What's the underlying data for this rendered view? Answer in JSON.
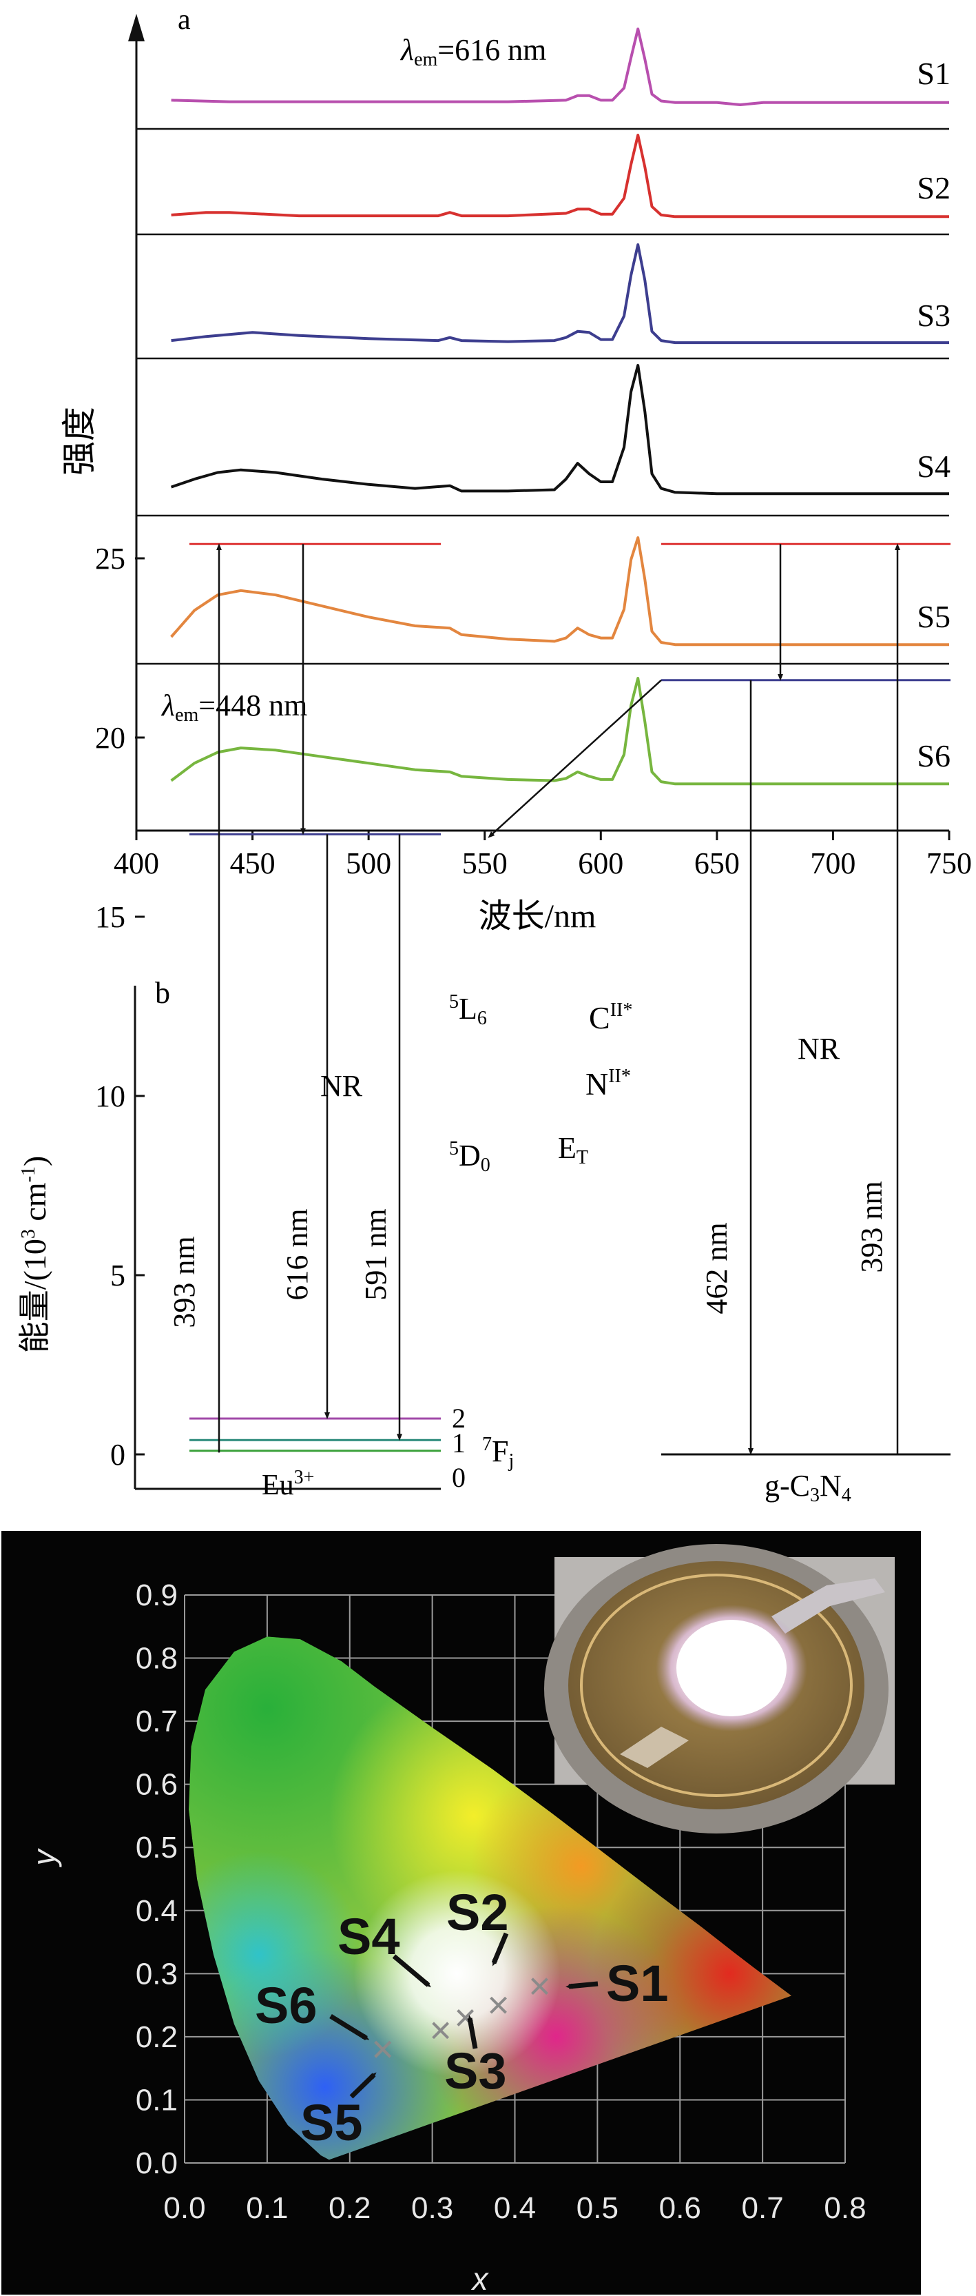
{
  "panel_a": {
    "label": "a",
    "ylabel": "强度",
    "xlabel": "波长/nm",
    "annot_top": {
      "lam": "λ",
      "sub": "em",
      "rest": "=616 nm"
    },
    "annot_bottom": {
      "lam": "λ",
      "sub": "em",
      "rest": "=448 nm"
    }
  },
  "panel_b": {
    "label": "b",
    "ylabel_pre": "能量/(10",
    "ylabel_sup": "3",
    "ylabel_mid": " cm",
    "ylabel_sup2": "-1",
    "ylabel_post": ")",
    "eu_levels": {
      "L6": "5",
      "L6b": "L",
      "L6c": "6",
      "D0": "5",
      "D0b": "D",
      "D0c": "0",
      "F": "7",
      "Fb": "F",
      "Fc": "j"
    },
    "fj_labels": [
      "2",
      "1",
      "0"
    ],
    "eu_label": {
      "base": "Eu",
      "sup": "3+"
    },
    "gcn_label": {
      "pre": "g-C",
      "s1": "3",
      "mid": "N",
      "s2": "4"
    },
    "c_level": {
      "base": "C",
      "sup": "II*"
    },
    "n_level": {
      "base": "N",
      "sup": "II*"
    },
    "nr_left": "NR",
    "nr_right": "NR",
    "et": {
      "base": "E",
      "sub": "T"
    },
    "t393_left": "393 nm",
    "t616": "616 nm",
    "t591": "591 nm",
    "t462": "462 nm",
    "t393_right": "393 nm"
  },
  "panel_c": {
    "xlabel": "x",
    "ylabel": "y",
    "labels": [
      "S1",
      "S2",
      "S3",
      "S4",
      "S5",
      "S6"
    ]
  },
  "chart_data": [
    {
      "type": "line",
      "panel": "a",
      "xlabel": "波长/nm",
      "ylabel": "强度",
      "xlim": [
        400,
        750
      ],
      "xticks": [
        400,
        450,
        500,
        550,
        600,
        650,
        700,
        750
      ],
      "series": [
        {
          "name": "S1",
          "color": "#b84fae",
          "x": [
            415,
            440,
            470,
            500,
            530,
            560,
            585,
            590,
            595,
            600,
            605,
            610,
            613,
            616,
            619,
            622,
            626,
            632,
            650,
            660,
            670,
            680,
            700,
            720,
            750
          ],
          "y": [
            0.06,
            0.04,
            0.04,
            0.04,
            0.04,
            0.04,
            0.06,
            0.12,
            0.12,
            0.06,
            0.06,
            0.22,
            0.62,
            1.0,
            0.6,
            0.14,
            0.05,
            0.03,
            0.03,
            0.0,
            0.03,
            0.03,
            0.03,
            0.03,
            0.03
          ]
        },
        {
          "name": "S2",
          "color": "#d7312f",
          "x": [
            415,
            430,
            440,
            470,
            500,
            530,
            535,
            540,
            560,
            585,
            590,
            595,
            600,
            605,
            610,
            613,
            616,
            619,
            622,
            626,
            632,
            650,
            700,
            720,
            750
          ],
          "y": [
            0.05,
            0.08,
            0.08,
            0.04,
            0.04,
            0.04,
            0.08,
            0.04,
            0.04,
            0.07,
            0.12,
            0.12,
            0.06,
            0.06,
            0.25,
            0.65,
            1.0,
            0.62,
            0.15,
            0.05,
            0.03,
            0.03,
            0.03,
            0.03,
            0.03
          ]
        },
        {
          "name": "S3",
          "color": "#3d3e8f",
          "x": [
            415,
            430,
            450,
            470,
            500,
            530,
            535,
            540,
            560,
            580,
            585,
            590,
            595,
            600,
            605,
            610,
            613,
            616,
            619,
            622,
            626,
            632,
            650,
            700,
            750
          ],
          "y": [
            0.06,
            0.1,
            0.14,
            0.11,
            0.08,
            0.06,
            0.09,
            0.06,
            0.05,
            0.06,
            0.09,
            0.15,
            0.14,
            0.07,
            0.07,
            0.3,
            0.7,
            1.0,
            0.65,
            0.15,
            0.06,
            0.04,
            0.04,
            0.04,
            0.04
          ]
        },
        {
          "name": "S4",
          "color": "#111111",
          "x": [
            415,
            425,
            435,
            445,
            460,
            480,
            500,
            520,
            535,
            540,
            560,
            580,
            585,
            590,
            595,
            600,
            605,
            610,
            613,
            616,
            619,
            622,
            626,
            632,
            650,
            700,
            750
          ],
          "y": [
            0.08,
            0.14,
            0.19,
            0.21,
            0.19,
            0.14,
            0.1,
            0.07,
            0.09,
            0.05,
            0.05,
            0.06,
            0.14,
            0.26,
            0.18,
            0.12,
            0.12,
            0.38,
            0.8,
            1.0,
            0.65,
            0.18,
            0.07,
            0.04,
            0.03,
            0.03,
            0.03
          ]
        },
        {
          "name": "S5",
          "color": "#e3863f",
          "x": [
            415,
            425,
            435,
            445,
            460,
            480,
            500,
            520,
            535,
            540,
            560,
            580,
            585,
            590,
            595,
            600,
            605,
            610,
            613,
            616,
            619,
            622,
            626,
            632,
            650,
            700,
            750
          ],
          "y": [
            0.1,
            0.34,
            0.48,
            0.52,
            0.48,
            0.38,
            0.28,
            0.2,
            0.18,
            0.12,
            0.08,
            0.06,
            0.09,
            0.18,
            0.12,
            0.09,
            0.09,
            0.35,
            0.8,
            1.0,
            0.62,
            0.15,
            0.05,
            0.03,
            0.03,
            0.03,
            0.03
          ]
        },
        {
          "name": "S6",
          "color": "#77b63f",
          "x": [
            415,
            425,
            435,
            445,
            460,
            480,
            500,
            520,
            535,
            540,
            560,
            580,
            585,
            590,
            595,
            600,
            605,
            610,
            613,
            616,
            619,
            622,
            626,
            632,
            650,
            700,
            750
          ],
          "y": [
            0.06,
            0.22,
            0.32,
            0.36,
            0.34,
            0.28,
            0.22,
            0.16,
            0.14,
            0.1,
            0.07,
            0.06,
            0.08,
            0.14,
            0.1,
            0.07,
            0.07,
            0.3,
            0.75,
            1.0,
            0.6,
            0.14,
            0.05,
            0.03,
            0.03,
            0.03,
            0.03
          ]
        }
      ]
    },
    {
      "type": "diagram",
      "panel": "b",
      "ylabel": "能量/(10³ cm⁻¹)",
      "ylim": [
        0,
        26
      ],
      "yticks": [
        0,
        5,
        10,
        15,
        20,
        25
      ],
      "eu_levels": [
        {
          "level": "5L6",
          "energy": 25.4
        },
        {
          "level": "5D0",
          "energy": 17.3
        },
        {
          "level": "7F2",
          "energy": 1.0
        },
        {
          "level": "7F1",
          "energy": 0.4
        },
        {
          "level": "7F0",
          "energy": 0.1
        }
      ],
      "gcn_levels": [
        {
          "level": "CII*",
          "energy": 25.4
        },
        {
          "level": "NII*",
          "energy": 21.6
        },
        {
          "level": "ground",
          "energy": 0
        }
      ],
      "transitions": [
        {
          "label": "393 nm",
          "from": 0,
          "to": 25.4
        },
        {
          "label": "NR",
          "from": 25.4,
          "to": 17.3
        },
        {
          "label": "616 nm",
          "from": 17.3,
          "to": 1.0
        },
        {
          "label": "591 nm",
          "from": 17.3,
          "to": 0.4
        },
        {
          "label": "ET",
          "from": 21.6,
          "to": 17.3
        },
        {
          "label": "NR",
          "from": 25.4,
          "to": 21.6
        },
        {
          "label": "462 nm",
          "from": 21.6,
          "to": 0
        },
        {
          "label": "393 nm",
          "from": 0,
          "to": 25.4
        }
      ]
    },
    {
      "type": "scatter",
      "panel": "c",
      "xlabel": "x",
      "ylabel": "y",
      "xlim": [
        0.0,
        0.8
      ],
      "ylim": [
        0.0,
        0.9
      ],
      "xticks": [
        0.0,
        0.1,
        0.2,
        0.3,
        0.4,
        0.5,
        0.6,
        0.7,
        0.8
      ],
      "yticks": [
        0.0,
        0.1,
        0.2,
        0.3,
        0.4,
        0.5,
        0.6,
        0.7,
        0.8,
        0.9
      ],
      "points": [
        {
          "name": "S1",
          "x": 0.43,
          "y": 0.28
        },
        {
          "name": "S2",
          "x": 0.38,
          "y": 0.25
        },
        {
          "name": "S3",
          "x": 0.34,
          "y": 0.23
        },
        {
          "name": "S4",
          "x": 0.31,
          "y": 0.21
        },
        {
          "name": "S5",
          "x": 0.24,
          "y": 0.18
        },
        {
          "name": "S6",
          "x": 0.24,
          "y": 0.18
        }
      ]
    }
  ]
}
